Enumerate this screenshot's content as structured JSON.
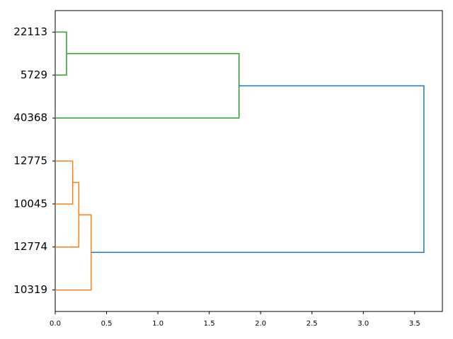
{
  "chart_data": {
    "type": "dendrogram",
    "orientation": "left",
    "xlim": [
      0,
      3.77
    ],
    "xticks": [
      {
        "value": 0,
        "label": "0.0"
      },
      {
        "value": 0.5,
        "label": "0.5"
      },
      {
        "value": 1,
        "label": "1.0"
      },
      {
        "value": 1.5,
        "label": "1.5"
      },
      {
        "value": 2,
        "label": "2.0"
      },
      {
        "value": 2.5,
        "label": "2.5"
      },
      {
        "value": 3,
        "label": "3.0"
      },
      {
        "value": 3.5,
        "label": "3.5"
      }
    ],
    "tree": {
      "height": 3.59,
      "color": "#1f77b4",
      "children": [
        {
          "height": 1.79,
          "color": "#2ca02c",
          "children": [
            {
              "height": 0.11,
              "color": "#2ca02c",
              "children": [
                {
                  "label": "22113"
                },
                {
                  "label": "5729"
                }
              ]
            },
            {
              "label": "40368"
            }
          ]
        },
        {
          "height": 0.35,
          "color": "#ff7f0e",
          "children": [
            {
              "height": 0.23,
              "color": "#ff7f0e",
              "children": [
                {
                  "height": 0.17,
                  "color": "#ff7f0e",
                  "children": [
                    {
                      "label": "12775"
                    },
                    {
                      "label": "10045"
                    }
                  ]
                },
                {
                  "label": "12774"
                }
              ]
            },
            {
              "label": "10319"
            }
          ]
        }
      ]
    }
  }
}
